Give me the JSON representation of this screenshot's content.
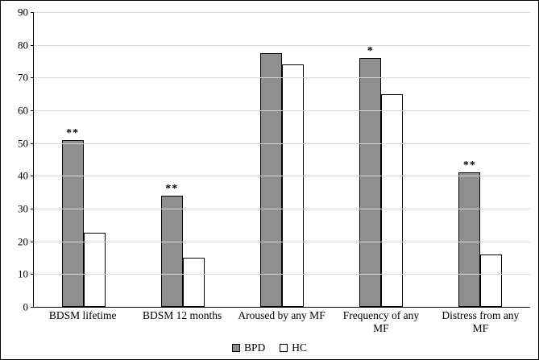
{
  "chart_data": {
    "type": "bar",
    "title": "",
    "xlabel": "",
    "ylabel": "",
    "categories": [
      "BDSM lifetime",
      "BDSM 12 months",
      "Aroused by any MF",
      "Frequency of any MF",
      "Distress from any MF"
    ],
    "series": [
      {
        "name": "BPD",
        "color": "#8f8f8f",
        "values": [
          51,
          34,
          77.5,
          76,
          41
        ]
      },
      {
        "name": "HC",
        "color": "#ffffff",
        "values": [
          22.7,
          15,
          74,
          65,
          16
        ]
      }
    ],
    "annotations": [
      "**",
      "**",
      "",
      "*",
      "**"
    ],
    "ylim": [
      0,
      90
    ],
    "ytick_step": 10,
    "grid": true,
    "legend_position": "bottom"
  },
  "colors": {
    "bar_border": "#000000",
    "gridline": "#d9d9d9",
    "axis": "#000000",
    "background": "#ffffff"
  }
}
